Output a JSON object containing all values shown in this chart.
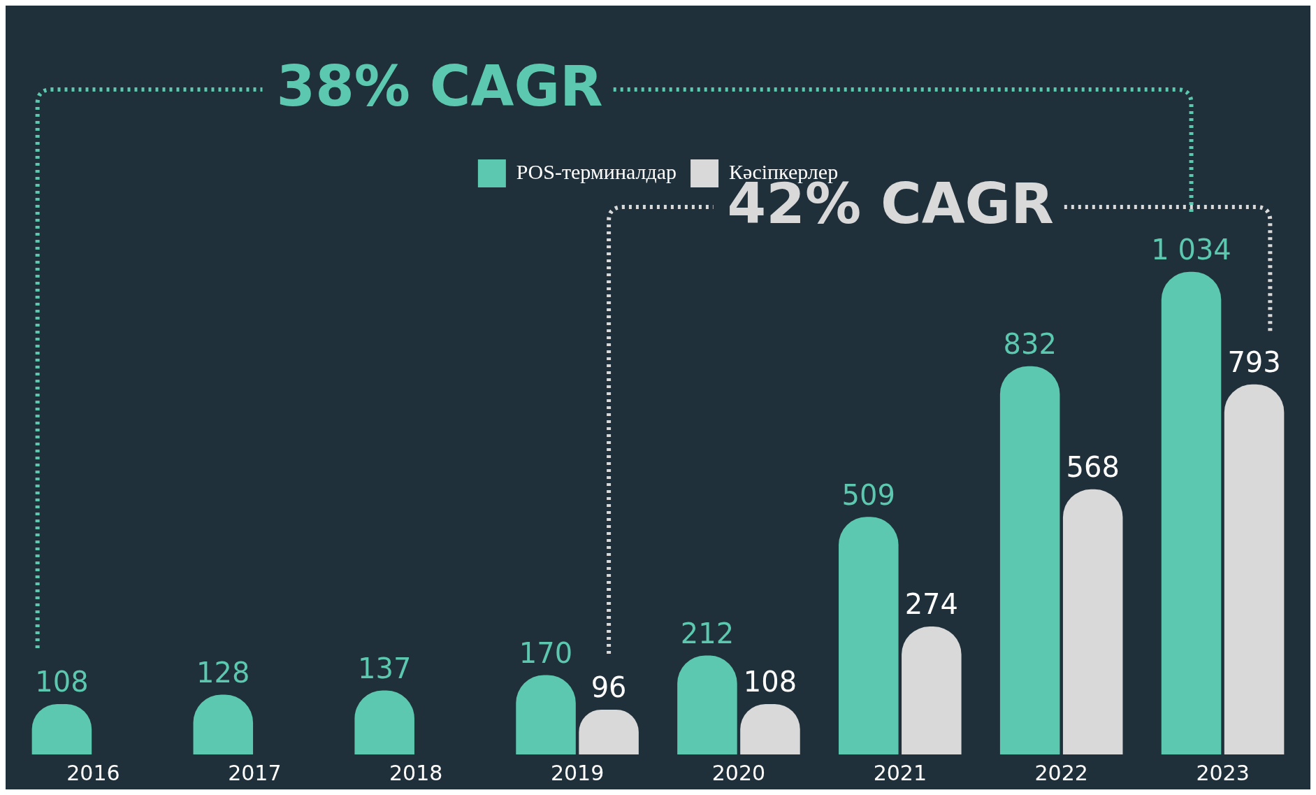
{
  "chart_data": {
    "type": "bar",
    "categories": [
      "2016",
      "2017",
      "2018",
      "2019",
      "2020",
      "2021",
      "2022",
      "2023"
    ],
    "series": [
      {
        "name": "POS-терминалдар",
        "color": "#5bc8af",
        "values": [
          108,
          128,
          137,
          170,
          212,
          509,
          832,
          1034
        ],
        "value_labels": [
          "108",
          "128",
          "137",
          "170",
          "212",
          "509",
          "832",
          "1 034"
        ]
      },
      {
        "name": "Кәсіпкерлер",
        "color": "#d9d9d9",
        "values": [
          null,
          null,
          null,
          96,
          108,
          274,
          568,
          793
        ],
        "value_labels": [
          null,
          null,
          null,
          "96",
          "108",
          "274",
          "568",
          "793"
        ]
      }
    ],
    "annotations": [
      "38% CAGR",
      "42% CAGR"
    ],
    "legend": "top",
    "grid": false,
    "tick_labels": "x"
  }
}
